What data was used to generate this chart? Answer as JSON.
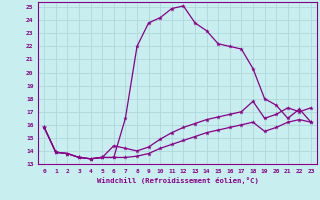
{
  "xlabel": "Windchill (Refroidissement éolien,°C)",
  "bg_color": "#c8eef0",
  "grid_color": "#b0d8da",
  "line_color": "#880088",
  "xlim": [
    -0.5,
    23.5
  ],
  "ylim": [
    13,
    25.4
  ],
  "yticks": [
    13,
    14,
    15,
    16,
    17,
    18,
    19,
    20,
    21,
    22,
    23,
    24,
    25
  ],
  "xticks": [
    0,
    1,
    2,
    3,
    4,
    5,
    6,
    7,
    8,
    9,
    10,
    11,
    12,
    13,
    14,
    15,
    16,
    17,
    18,
    19,
    20,
    21,
    22,
    23
  ],
  "line1_x": [
    0,
    1,
    2,
    3,
    4,
    5,
    6,
    7,
    8,
    9,
    10,
    11,
    12,
    13,
    14,
    15,
    16,
    17,
    18,
    19,
    20,
    21,
    22,
    23
  ],
  "line1_y": [
    15.8,
    13.9,
    13.8,
    13.5,
    13.4,
    13.5,
    13.5,
    16.5,
    22.0,
    23.8,
    24.2,
    24.9,
    25.1,
    23.8,
    23.2,
    22.2,
    22.0,
    21.8,
    20.3,
    18.0,
    17.5,
    16.5,
    17.2,
    16.2
  ],
  "line2_x": [
    0,
    1,
    2,
    3,
    4,
    5,
    6,
    7,
    8,
    9,
    10,
    11,
    12,
    13,
    14,
    15,
    16,
    17,
    18,
    19,
    20,
    21,
    22,
    23
  ],
  "line2_y": [
    15.8,
    13.9,
    13.8,
    13.5,
    13.4,
    13.5,
    14.4,
    14.2,
    14.0,
    14.3,
    14.9,
    15.4,
    15.8,
    16.1,
    16.4,
    16.6,
    16.8,
    17.0,
    17.8,
    16.5,
    16.8,
    17.3,
    17.0,
    17.3
  ],
  "line3_x": [
    0,
    1,
    2,
    3,
    4,
    5,
    6,
    7,
    8,
    9,
    10,
    11,
    12,
    13,
    14,
    15,
    16,
    17,
    18,
    19,
    20,
    21,
    22,
    23
  ],
  "line3_y": [
    15.8,
    13.9,
    13.8,
    13.5,
    13.4,
    13.5,
    13.5,
    13.5,
    13.6,
    13.8,
    14.2,
    14.5,
    14.8,
    15.1,
    15.4,
    15.6,
    15.8,
    16.0,
    16.2,
    15.5,
    15.8,
    16.2,
    16.4,
    16.2
  ]
}
